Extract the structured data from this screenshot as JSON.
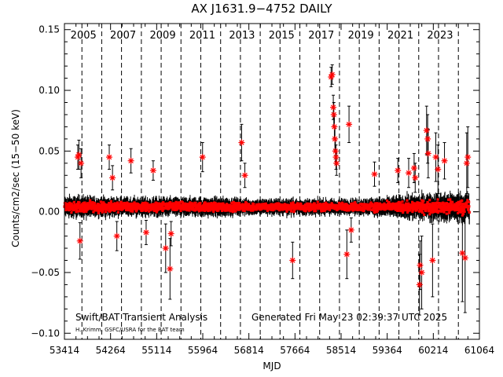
{
  "chart_data": {
    "type": "scatter",
    "title": "AX J1631.9−4752 DAILY",
    "xlabel": "MJD",
    "ylabel": "Counts/cm2/sec (15−50 keV)",
    "xlim": [
      53414,
      61064
    ],
    "ylim": [
      -0.105,
      0.155
    ],
    "x_ticks": [
      "53414",
      "54264",
      "55114",
      "55964",
      "56814",
      "57664",
      "58514",
      "59364",
      "60214",
      "61064"
    ],
    "y_ticks": [
      {
        "value": 0.15,
        "label": "0.15"
      },
      {
        "value": 0.1,
        "label": "0.10"
      },
      {
        "value": 0.05,
        "label": "0.05"
      },
      {
        "value": 0.0,
        "label": "0.00"
      },
      {
        "value": -0.05,
        "label": "−0.05"
      },
      {
        "value": -0.1,
        "label": "−0.10"
      }
    ],
    "year_markers": [
      {
        "year": "2005",
        "mjd": 53736
      },
      {
        "year": "2007",
        "mjd": 54466
      },
      {
        "year": "2009",
        "mjd": 55197
      },
      {
        "year": "2011",
        "mjd": 55927
      },
      {
        "year": "2013",
        "mjd": 56658
      },
      {
        "year": "2015",
        "mjd": 57388
      },
      {
        "year": "2017",
        "mjd": 58119
      },
      {
        "year": "2019",
        "mjd": 58849
      },
      {
        "year": "2021",
        "mjd": 59580
      },
      {
        "year": "2023",
        "mjd": 60310
      }
    ],
    "year_boundaries_mjd": [
      53371,
      53736,
      54101,
      54466,
      54832,
      55197,
      55562,
      55927,
      56293,
      56658,
      57023,
      57388,
      57754,
      58119,
      58484,
      58849,
      59215,
      59580,
      59945,
      60310,
      60676
    ],
    "series": [
      {
        "type": "typical_spread",
        "x": [
          53414,
          53800,
          54300,
          54800,
          55300,
          55800,
          56300,
          56800,
          57300,
          57800,
          58300,
          58800,
          59300,
          59800,
          60300,
          60880
        ],
        "y": [
          0.004,
          0.004,
          0.004,
          0.004,
          0.004,
          0.004,
          0.004,
          0.004,
          0.004,
          0.004,
          0.004,
          0.004,
          0.004,
          0.004,
          0.004,
          0.004
        ],
        "err": [
          0.008,
          0.008,
          0.007,
          0.007,
          0.007,
          0.007,
          0.007,
          0.006,
          0.006,
          0.006,
          0.006,
          0.006,
          0.007,
          0.009,
          0.01,
          0.011
        ]
      },
      {
        "type": "notable_points",
        "x": [
          53660,
          53680,
          53700,
          53720,
          54240,
          54300,
          54380,
          54640,
          54920,
          55050,
          55280,
          55360,
          55380,
          55960,
          56680,
          56740,
          57620,
          58330,
          58350,
          58370,
          58380,
          58390,
          58400,
          58410,
          58420,
          58430,
          58620,
          58660,
          58700,
          59130,
          59560,
          59760,
          59860,
          59880,
          59960,
          59970,
          60000,
          60090,
          60110,
          60120,
          60200,
          60260,
          60300,
          60420,
          60750,
          60800,
          60830,
          60850
        ],
        "y": [
          0.045,
          0.047,
          -0.024,
          0.04,
          0.045,
          0.028,
          -0.02,
          0.042,
          -0.017,
          0.034,
          -0.03,
          -0.047,
          -0.018,
          0.045,
          0.057,
          0.03,
          -0.04,
          0.111,
          0.113,
          0.086,
          0.08,
          0.07,
          0.06,
          0.05,
          0.045,
          0.04,
          -0.035,
          0.072,
          -0.015,
          0.031,
          0.034,
          0.032,
          0.036,
          0.028,
          -0.06,
          -0.044,
          -0.05,
          0.067,
          0.06,
          0.048,
          -0.04,
          0.045,
          0.035,
          0.042,
          -0.034,
          -0.038,
          0.04,
          0.045
        ],
        "err": [
          0.01,
          0.012,
          0.015,
          0.012,
          0.01,
          0.01,
          0.012,
          0.01,
          0.01,
          0.008,
          0.02,
          0.025,
          0.01,
          0.012,
          0.015,
          0.01,
          0.015,
          0.008,
          0.008,
          0.01,
          0.01,
          0.01,
          0.01,
          0.01,
          0.01,
          0.01,
          0.02,
          0.015,
          0.01,
          0.01,
          0.01,
          0.012,
          0.012,
          0.012,
          0.025,
          0.02,
          0.03,
          0.02,
          0.02,
          0.02,
          0.03,
          0.02,
          0.02,
          0.015,
          0.04,
          0.045,
          0.025,
          0.025
        ]
      }
    ],
    "annotations": {
      "left": "Swift/BAT Transient Analysis",
      "right": "Generated Fri May 23 02:39:37 UTC 2025",
      "credit": "H. Krimm, GSFC/USRA for the BAT team"
    },
    "colors": {
      "point": "#ff0000",
      "errorbar": "#000000",
      "axis": "#000000"
    },
    "grid": false
  }
}
